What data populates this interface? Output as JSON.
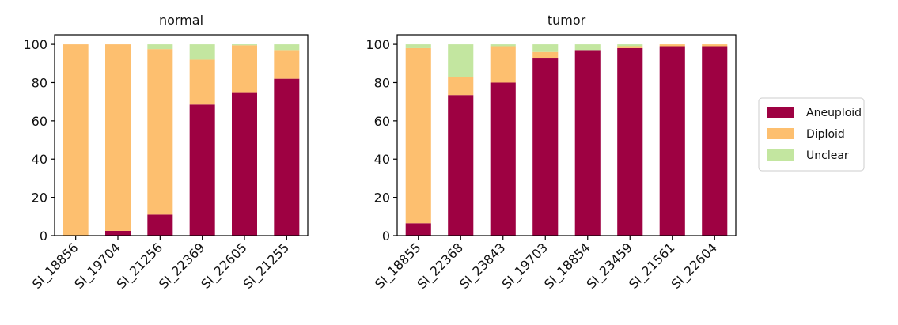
{
  "chart_data": [
    {
      "type": "bar",
      "stacked": true,
      "title": "normal",
      "categories": [
        "SI_18856",
        "SI_19704",
        "SI_21256",
        "SI_22369",
        "SI_22605",
        "SI_21255"
      ],
      "series": [
        {
          "name": "Aneuploid",
          "values": [
            0,
            2.5,
            11,
            68.5,
            75,
            82
          ]
        },
        {
          "name": "Diploid",
          "values": [
            100,
            97.5,
            86.5,
            23.5,
            24.5,
            15
          ]
        },
        {
          "name": "Unclear",
          "values": [
            0,
            0,
            2.5,
            8,
            0.5,
            3
          ]
        }
      ],
      "ylim": [
        0,
        105
      ],
      "yticks": [
        0,
        20,
        40,
        60,
        80,
        100
      ],
      "grid": false
    },
    {
      "type": "bar",
      "stacked": true,
      "title": "tumor",
      "categories": [
        "SI_18855",
        "SI_22368",
        "SI_23843",
        "SI_19703",
        "SI_18854",
        "SI_23459",
        "SI_21561",
        "SI_22604"
      ],
      "series": [
        {
          "name": "Aneuploid",
          "values": [
            6.5,
            73.5,
            80,
            93,
            97,
            98,
            99,
            99
          ]
        },
        {
          "name": "Diploid",
          "values": [
            91.5,
            9.5,
            19,
            3,
            0,
            1,
            1,
            1
          ]
        },
        {
          "name": "Unclear",
          "values": [
            2,
            17,
            1,
            4,
            3,
            1,
            0,
            0
          ]
        }
      ],
      "ylim": [
        0,
        105
      ],
      "yticks": [
        0,
        20,
        40,
        60,
        80,
        100
      ],
      "grid": false
    }
  ],
  "legend": {
    "position": "right",
    "entries": [
      "Aneuploid",
      "Diploid",
      "Unclear"
    ]
  },
  "colors": {
    "Aneuploid": "#9e0142",
    "Diploid": "#fdbf6f",
    "Unclear": "#c3e6a0"
  }
}
